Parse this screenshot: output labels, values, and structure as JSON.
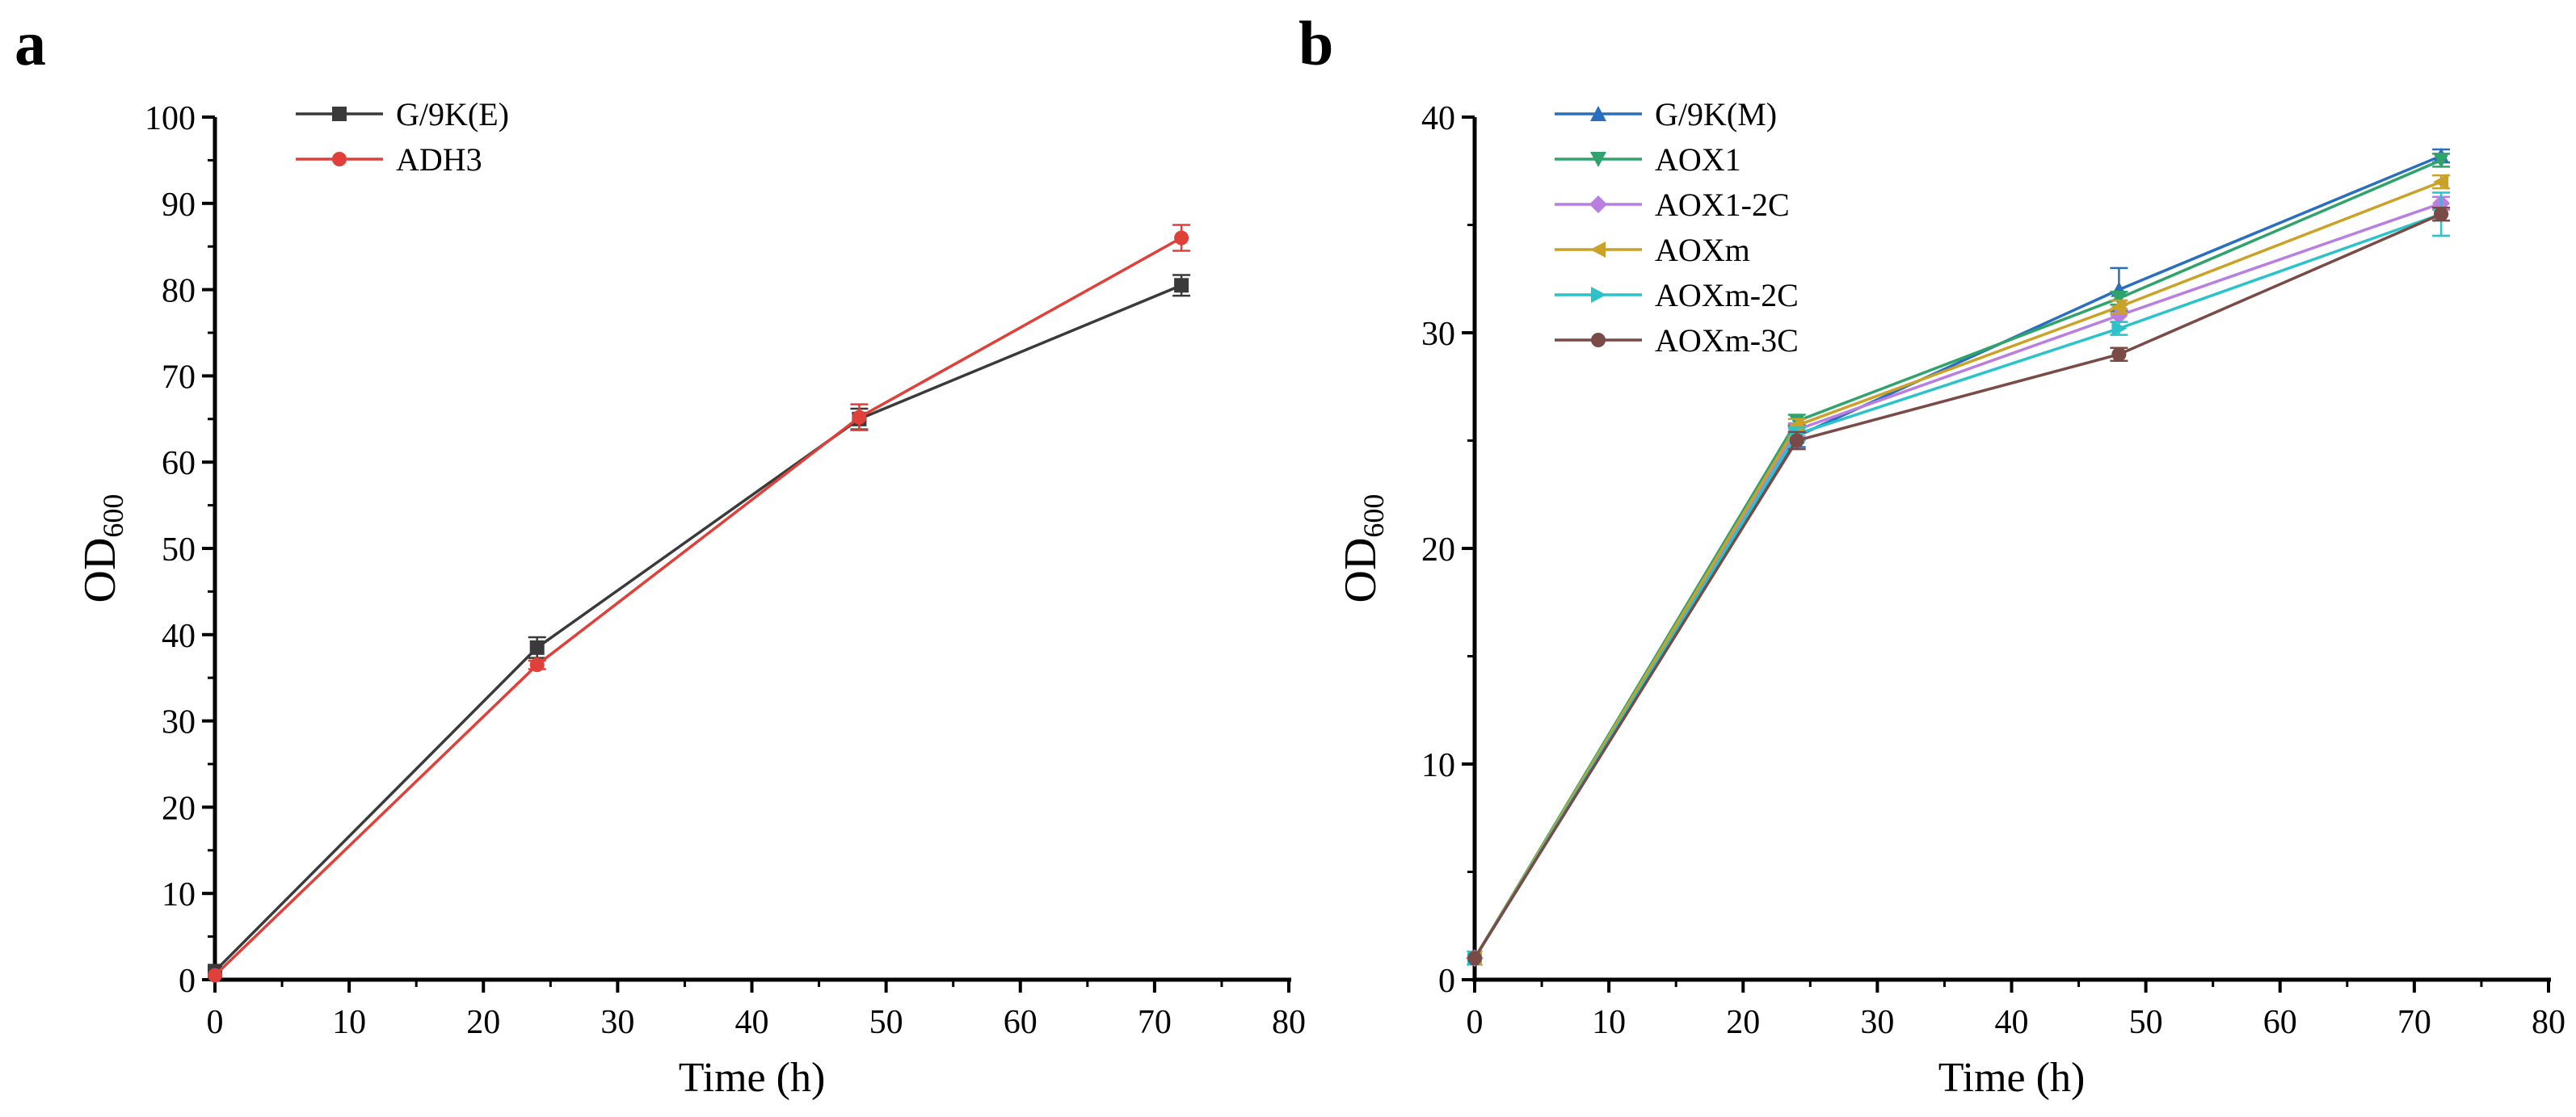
{
  "chart_data": [
    {
      "type": "line",
      "panel": "a",
      "xlabel": "Time (h)",
      "ylabel": {
        "main": "OD",
        "sub": "600"
      },
      "xlim": [
        0,
        80
      ],
      "ylim": [
        0,
        100
      ],
      "xticks": [
        0,
        10,
        20,
        30,
        40,
        50,
        60,
        70,
        80
      ],
      "yticks": [
        0,
        10,
        20,
        30,
        40,
        50,
        60,
        70,
        80,
        90,
        100
      ],
      "grid": false,
      "legend_position": "top-left",
      "x": [
        0,
        24,
        48,
        72
      ],
      "series": [
        {
          "name": "G/9K(E)",
          "color": "#3a3a3a",
          "marker": "square",
          "values": [
            1,
            38.5,
            65,
            80.5
          ],
          "errors": [
            0,
            1.2,
            1.2,
            1.2
          ]
        },
        {
          "name": "ADH3",
          "color": "#e0403a",
          "marker": "circle",
          "values": [
            0.5,
            36.5,
            65.2,
            86
          ],
          "errors": [
            0,
            0.5,
            1.5,
            1.5
          ]
        }
      ]
    },
    {
      "type": "line",
      "panel": "b",
      "xlabel": "Time (h)",
      "ylabel": {
        "main": "OD",
        "sub": "600"
      },
      "xlim": [
        0,
        80
      ],
      "ylim": [
        0,
        40
      ],
      "xticks": [
        0,
        10,
        20,
        30,
        40,
        50,
        60,
        70,
        80
      ],
      "yticks": [
        0,
        10,
        20,
        30,
        40
      ],
      "grid": false,
      "legend_position": "top-left",
      "x": [
        0,
        24,
        48,
        72
      ],
      "series": [
        {
          "name": "G/9K(M)",
          "color": "#2a6fbf",
          "marker": "triangle-up",
          "values": [
            1,
            25.2,
            32,
            38.2
          ],
          "errors": [
            0,
            0.5,
            1.0,
            0.3
          ]
        },
        {
          "name": "AOX1",
          "color": "#2fa36b",
          "marker": "triangle-down",
          "values": [
            1,
            25.9,
            31.6,
            38
          ],
          "errors": [
            0,
            0.3,
            0.3,
            0.3
          ]
        },
        {
          "name": "AOX1-2C",
          "color": "#b87fe0",
          "marker": "diamond",
          "values": [
            1,
            25.5,
            30.8,
            36
          ],
          "errors": [
            0,
            0.3,
            0.3,
            0.3
          ]
        },
        {
          "name": "AOXm",
          "color": "#c9a227",
          "marker": "triangle-left",
          "values": [
            1,
            25.7,
            31.2,
            37
          ],
          "errors": [
            0,
            0.3,
            0.3,
            0.3
          ]
        },
        {
          "name": "AOXm-2C",
          "color": "#2bc3c9",
          "marker": "triangle-right",
          "values": [
            1,
            25.3,
            30.2,
            35.5
          ],
          "errors": [
            0,
            0.3,
            0.3,
            1.0
          ]
        },
        {
          "name": "AOXm-3C",
          "color": "#7a4a46",
          "marker": "circle",
          "values": [
            1,
            25,
            29,
            35.5
          ],
          "errors": [
            0,
            0.4,
            0.3,
            0.3
          ]
        }
      ]
    }
  ]
}
